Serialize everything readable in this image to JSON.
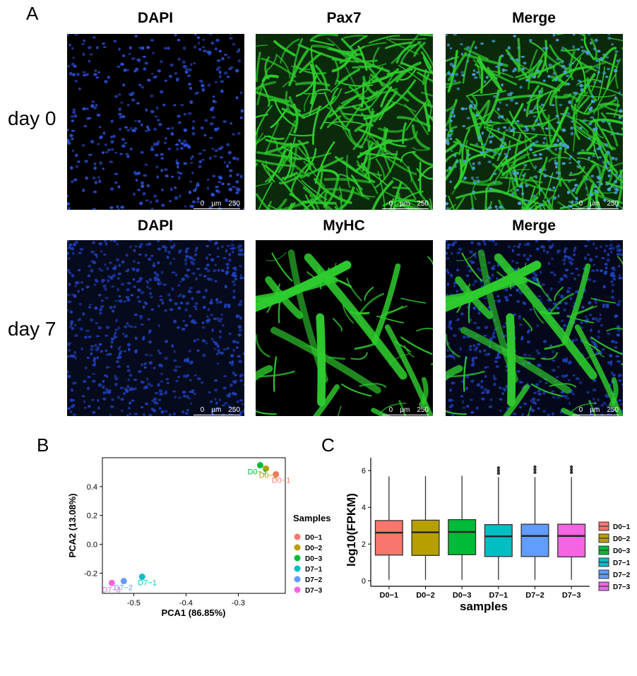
{
  "panelA": {
    "letter": "A",
    "row1": {
      "label": "day 0",
      "titles": [
        "DAPI",
        "Pax7",
        "Merge"
      ]
    },
    "row2": {
      "label": "day 7",
      "titles": [
        "DAPI",
        "MyHC",
        "Merge"
      ]
    },
    "scale_bar": {
      "start": "0",
      "unit": "µm",
      "end": "250"
    }
  },
  "panelB": {
    "letter": "B"
  },
  "panelC": {
    "letter": "C"
  },
  "colors": {
    "D0-1": "#F8766D",
    "D0-2": "#B79F00",
    "D0-3": "#00BA38",
    "D7-1": "#00BFC4",
    "D7-2": "#619CFF",
    "D7-3": "#F564E3",
    "dapi": "#2a4fd6",
    "stain": "#2ecc2e"
  },
  "chart_data": [
    {
      "type": "scatter",
      "xlabel": "PCA1 (86.85%)",
      "ylabel": "PCA2 (13.08%)",
      "xlim": [
        -0.56,
        -0.21
      ],
      "ylim": [
        -0.34,
        0.6
      ],
      "xticks": [
        -0.5,
        -0.4,
        -0.3
      ],
      "yticks": [
        -0.2,
        0.0,
        0.2,
        0.4
      ],
      "ytick_labels": [
        "-0.2",
        "0.0",
        "0.2",
        "0.4"
      ],
      "xtick_labels": [
        "-0.5",
        "-0.4",
        "-0.3"
      ],
      "legend_title": "Samples",
      "legend_position": "right",
      "points": [
        {
          "name": "D0-1",
          "x": -0.228,
          "y": 0.485,
          "label": "D0−1"
        },
        {
          "name": "D0-2",
          "x": -0.247,
          "y": 0.525,
          "label": "D0−2"
        },
        {
          "name": "D0-3",
          "x": -0.258,
          "y": 0.548,
          "label": "D0−3"
        },
        {
          "name": "D7-1",
          "x": -0.484,
          "y": -0.225,
          "label": "D7−1"
        },
        {
          "name": "D7-2",
          "x": -0.519,
          "y": -0.255,
          "label": "D7−2"
        },
        {
          "name": "D7-3",
          "x": -0.542,
          "y": -0.268,
          "label": "D7−3"
        }
      ]
    },
    {
      "type": "box",
      "xlabel": "samples",
      "ylabel": "log10(FPKM)",
      "ylim": [
        -0.3,
        6.7
      ],
      "yticks": [
        0,
        2,
        4,
        6
      ],
      "legend_position": "right",
      "categories": [
        "D0−1",
        "D0−2",
        "D0−3",
        "D7−1",
        "D7−2",
        "D7−3"
      ],
      "series_keys": [
        "D0-1",
        "D0-2",
        "D0-3",
        "D7-1",
        "D7-2",
        "D7-3"
      ],
      "boxes": [
        {
          "min": 0.05,
          "q1": 1.4,
          "median": 2.62,
          "q3": 3.28,
          "max": 5.68,
          "outliers": []
        },
        {
          "min": 0.05,
          "q1": 1.38,
          "median": 2.64,
          "q3": 3.3,
          "max": 5.7,
          "outliers": []
        },
        {
          "min": 0.05,
          "q1": 1.42,
          "median": 2.66,
          "q3": 3.33,
          "max": 5.72,
          "outliers": []
        },
        {
          "min": 0.05,
          "q1": 1.32,
          "median": 2.42,
          "q3": 3.06,
          "max": 5.65,
          "outliers": [
            5.85,
            6.0,
            6.15
          ]
        },
        {
          "min": 0.05,
          "q1": 1.32,
          "median": 2.44,
          "q3": 3.08,
          "max": 5.65,
          "outliers": [
            5.9,
            6.05,
            6.2
          ]
        },
        {
          "min": 0.05,
          "q1": 1.3,
          "median": 2.44,
          "q3": 3.08,
          "max": 5.65,
          "outliers": [
            5.9,
            6.05,
            6.2
          ]
        }
      ]
    }
  ]
}
